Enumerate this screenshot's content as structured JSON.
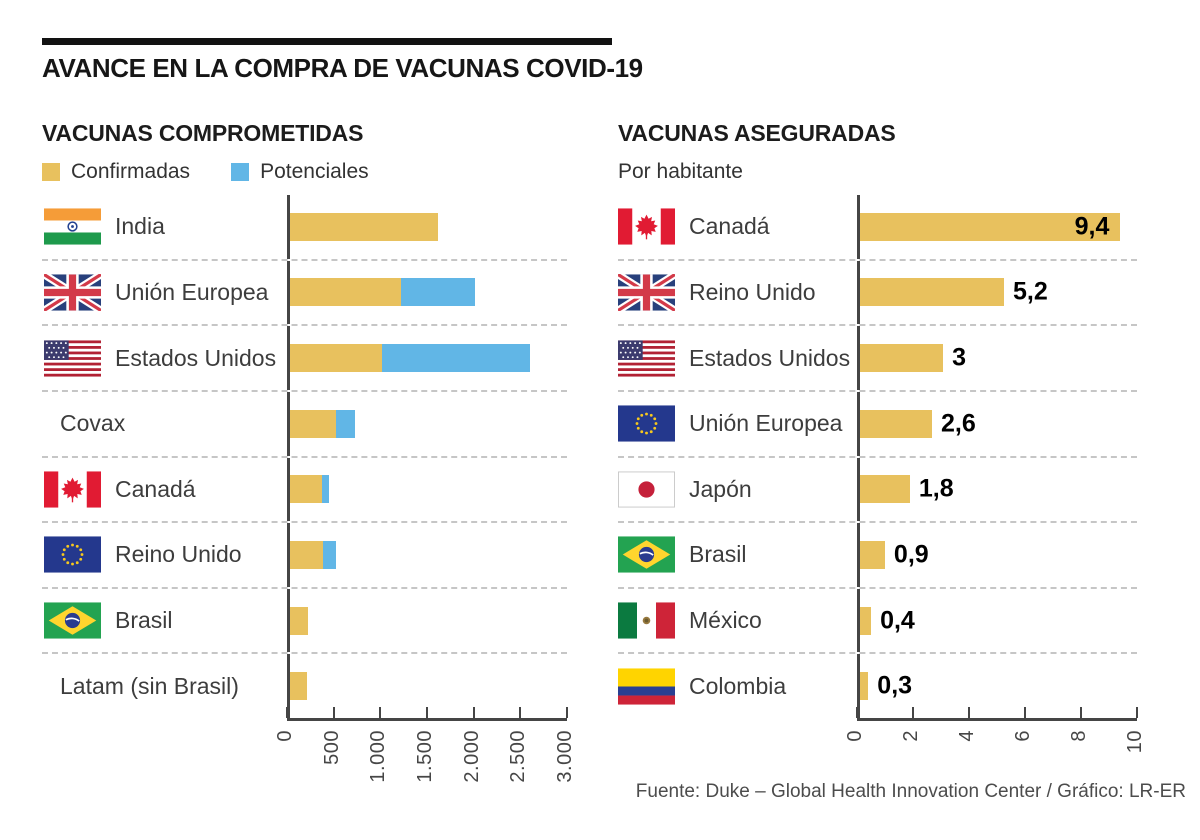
{
  "header": {
    "title": "AVANCE EN LA COMPRA DE VACUNAS COVID-19"
  },
  "footer": {
    "credit": "Fuente: Duke – Global Health Innovation Center / Gráfico: LR-ER"
  },
  "colors": {
    "confirmed": "#E8C15E",
    "potential": "#61B6E6",
    "axis": "#454545",
    "grid_dash": "#C6C6C6",
    "label_text": "#3D3D3D"
  },
  "chart_data": [
    {
      "type": "bar",
      "orientation": "horizontal",
      "stacked": true,
      "title": "VACUNAS COMPROMETIDAS",
      "legend_position": "top",
      "categories": [
        "India",
        "Unión Europea",
        "Estados Unidos",
        "Covax",
        "Canadá",
        "Reino Unido",
        "Brasil",
        "Latam (sin Brasil)"
      ],
      "flags": [
        "india",
        "uk",
        "us",
        null,
        "canada",
        "eu",
        "brazil",
        null
      ],
      "series": [
        {
          "name": "Confirmadas",
          "color": "#E8C15E",
          "values": [
            1600,
            1200,
            1000,
            500,
            350,
            360,
            200,
            185
          ]
        },
        {
          "name": "Potenciales",
          "color": "#61B6E6",
          "values": [
            0,
            800,
            1600,
            200,
            70,
            140,
            0,
            0
          ]
        }
      ],
      "xlim": [
        0,
        3000
      ],
      "x_ticks": [
        "0",
        "500",
        "1.000",
        "1.500",
        "2.000",
        "2.500",
        "3.000"
      ],
      "grid": "dashed-row-separators"
    },
    {
      "type": "bar",
      "orientation": "horizontal",
      "stacked": false,
      "title": "VACUNAS ASEGURADAS",
      "subtitle": "Por habitante",
      "categories": [
        "Canadá",
        "Reino Unido",
        "Estados Unidos",
        "Unión Europea",
        "Japón",
        "Brasil",
        "México",
        "Colombia"
      ],
      "flags": [
        "canada",
        "uk",
        "us",
        "eu",
        "japan",
        "brazil",
        "mexico",
        "colombia"
      ],
      "color": "#E8C15E",
      "values": [
        9.4,
        5.2,
        3,
        2.6,
        1.8,
        0.9,
        0.4,
        0.3
      ],
      "value_labels": [
        "9,4",
        "5,2",
        "3",
        "2,6",
        "1,8",
        "0,9",
        "0,4",
        "0,3"
      ],
      "xlim": [
        0,
        10
      ],
      "x_ticks": [
        "0",
        "2",
        "4",
        "6",
        "8",
        "10"
      ],
      "grid": "dashed-row-separators"
    }
  ]
}
